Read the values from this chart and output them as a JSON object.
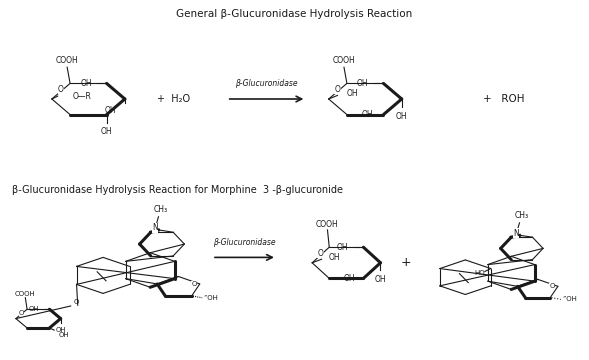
{
  "title1": "General β-Glucuronidase Hydrolysis Reaction",
  "title2": "β-Glucuronidase Hydrolysis Reaction for Morphine  3 -β-glucuronide",
  "enzyme_label": "β-Glucuronidase",
  "bg_color": "#ffffff",
  "line_color": "#1a1a1a",
  "fig_width": 5.89,
  "fig_height": 3.6,
  "dpi": 100
}
